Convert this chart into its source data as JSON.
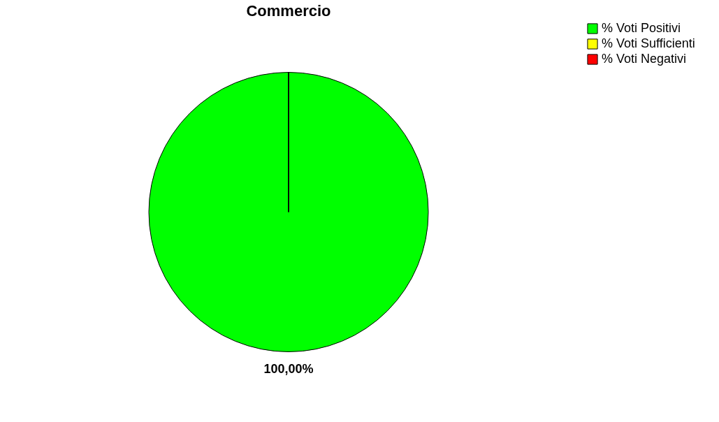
{
  "chart_data": {
    "type": "pie",
    "title": "Commercio",
    "categories": [
      "% Voti Positivi",
      "% Voti Sufficienti",
      "% Voti Negativi"
    ],
    "values": [
      100,
      0,
      0
    ],
    "colors": [
      "#00ff00",
      "#ffff00",
      "#ff0000"
    ],
    "value_labels": [
      "100,00%",
      null,
      null
    ],
    "legend": "right"
  }
}
